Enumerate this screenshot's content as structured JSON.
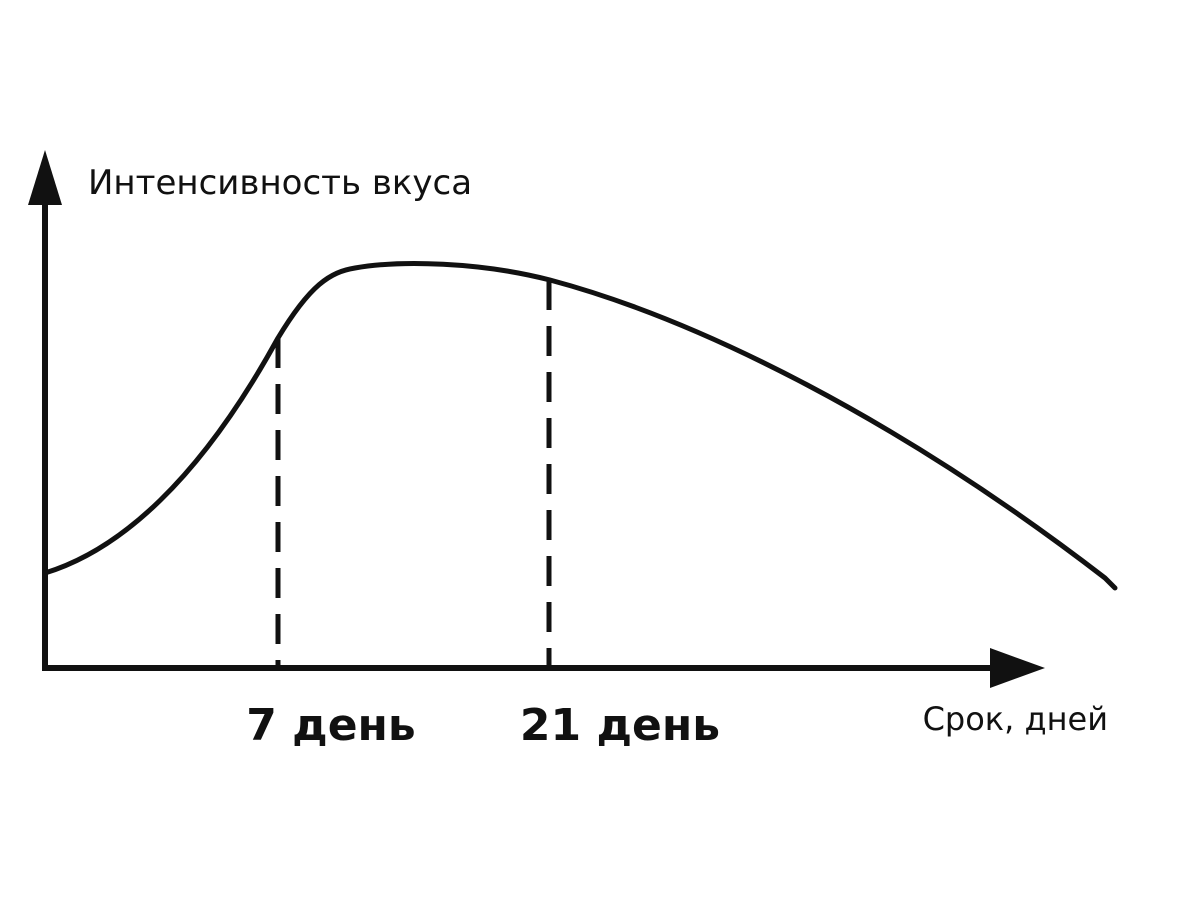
{
  "y_axis_label": "Интенсивность вкуса",
  "x_axis_label": "Срок, дней",
  "markers": [
    {
      "label": "7 день"
    },
    {
      "label": "21 день"
    }
  ]
}
